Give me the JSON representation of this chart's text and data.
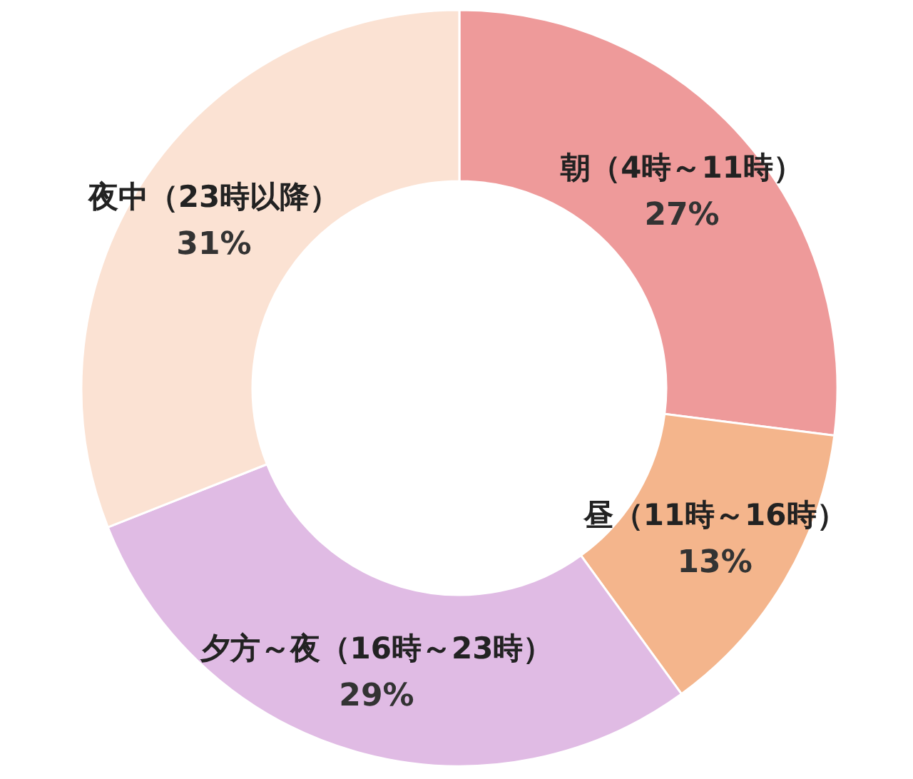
{
  "chart_data": {
    "type": "donut",
    "categories": [
      "朝（4時～11時）",
      "昼（11時～16時）",
      "夕方～夜（16時～23時）",
      "夜中（23時以降）"
    ],
    "values": [
      27,
      13,
      29,
      31
    ],
    "value_labels": [
      "27%",
      "13%",
      "29%",
      "31%"
    ],
    "colors": [
      "#ee9a9a",
      "#f4b58c",
      "#e0bbe4",
      "#fbe2d3"
    ],
    "legend": false
  }
}
